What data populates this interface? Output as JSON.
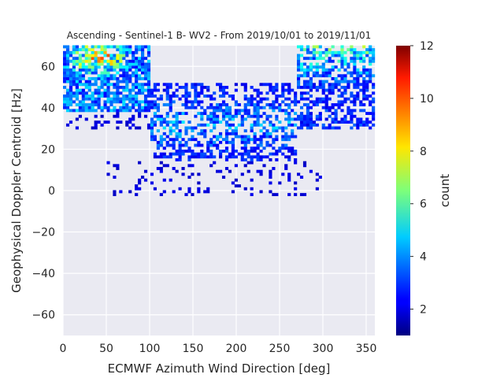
{
  "chart_data": {
    "type": "heatmap",
    "title": "Ascending - Sentinel-1 B- WV2 - From 2019/10/01 to 2019/11/01",
    "xlabel": "ECMWF Azimuth Wind Direction [deg]",
    "ylabel": "Geophysical Doppler Centroid [Hz]",
    "xlim": [
      0,
      360
    ],
    "ylim": [
      -70,
      70
    ],
    "xticks": [
      0,
      50,
      100,
      150,
      200,
      250,
      300,
      350
    ],
    "yticks": [
      -60,
      -40,
      -20,
      0,
      20,
      40,
      60
    ],
    "xtick_labels": [
      "0",
      "50",
      "100",
      "150",
      "200",
      "250",
      "300",
      "350"
    ],
    "ytick_labels": [
      "−60",
      "−40",
      "−20",
      "0",
      "20",
      "40",
      "60"
    ],
    "grid": true,
    "background": "#eaeaf2",
    "colormap": "jet",
    "colorbar": {
      "label": "count",
      "min": 1,
      "max": 12,
      "ticks": [
        2,
        4,
        6,
        8,
        10,
        12
      ],
      "tick_labels": [
        "2",
        "4",
        "6",
        "8",
        "10",
        "12"
      ]
    },
    "bin_size": {
      "x": 3.6,
      "y": 1.4
    },
    "density_regions": [
      {
        "x": [
          0,
          100
        ],
        "y": [
          40,
          70
        ],
        "typical_count": [
          1,
          8
        ],
        "note_max_near": [
          40,
          66
        ]
      },
      {
        "x": [
          100,
          270
        ],
        "y": [
          15,
          50
        ],
        "typical_count": [
          1,
          4
        ]
      },
      {
        "x": [
          270,
          360
        ],
        "y": [
          30,
          70
        ],
        "typical_count": [
          1,
          5
        ]
      },
      {
        "x": [
          50,
          300
        ],
        "y": [
          -2,
          15
        ],
        "typical_count": [
          1,
          1
        ]
      }
    ]
  }
}
